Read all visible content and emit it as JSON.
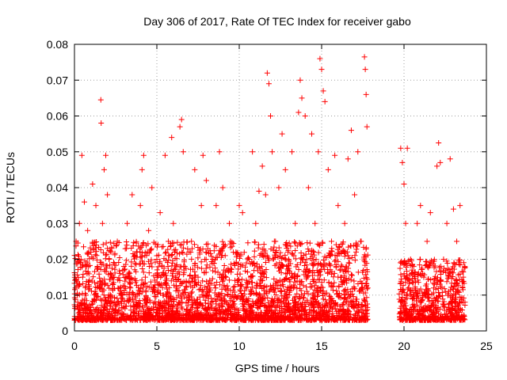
{
  "chart_data": {
    "type": "scatter",
    "title": "Day 306 of 2017, Rate Of TEC Index for receiver gabo",
    "xlabel": "GPS time / hours",
    "ylabel": "ROTI / TECUs",
    "xlim": [
      0,
      25
    ],
    "ylim": [
      0,
      0.08
    ],
    "x_ticks": [
      0,
      5,
      10,
      15,
      20,
      25
    ],
    "y_ticks": [
      0,
      0.01,
      0.02,
      0.03,
      0.04,
      0.05,
      0.06,
      0.07,
      0.08
    ],
    "x_tick_labels": [
      "0",
      "5",
      "10",
      "15",
      "20",
      "25"
    ],
    "y_tick_labels": [
      "0",
      "0.01",
      "0.02",
      "0.03",
      "0.04",
      "0.05",
      "0.06",
      "0.07",
      "0.08"
    ],
    "grid": true,
    "marker": "+",
    "color": "#ff0000",
    "series": [
      {
        "points": [
          [
            0.05,
            0.012
          ],
          [
            0.1,
            0.025
          ],
          [
            0.2,
            0.008
          ],
          [
            0.3,
            0.03
          ],
          [
            0.35,
            0.005
          ],
          [
            0.4,
            0.02
          ],
          [
            0.45,
            0.049
          ],
          [
            0.5,
            0.015
          ],
          [
            0.6,
            0.036
          ],
          [
            0.7,
            0.01
          ],
          [
            0.8,
            0.028
          ],
          [
            0.9,
            0.006
          ],
          [
            1.0,
            0.022
          ],
          [
            1.1,
            0.041
          ],
          [
            1.2,
            0.009
          ],
          [
            1.3,
            0.035
          ],
          [
            1.4,
            0.018
          ],
          [
            1.5,
            0.012
          ],
          [
            1.6,
            0.0645
          ],
          [
            1.62,
            0.058
          ],
          [
            1.7,
            0.03
          ],
          [
            1.8,
            0.045
          ],
          [
            1.9,
            0.049
          ],
          [
            2.0,
            0.038
          ],
          [
            2.1,
            0.02
          ],
          [
            2.2,
            0.007
          ],
          [
            2.4,
            0.015
          ],
          [
            2.6,
            0.025
          ],
          [
            2.8,
            0.01
          ],
          [
            3.0,
            0.018
          ],
          [
            3.2,
            0.03
          ],
          [
            3.4,
            0.012
          ],
          [
            3.5,
            0.038
          ],
          [
            3.6,
            0.008
          ],
          [
            3.8,
            0.022
          ],
          [
            4.0,
            0.035
          ],
          [
            4.1,
            0.045
          ],
          [
            4.2,
            0.049
          ],
          [
            4.3,
            0.015
          ],
          [
            4.5,
            0.028
          ],
          [
            4.7,
            0.04
          ],
          [
            4.8,
            0.006
          ],
          [
            5.0,
            0.02
          ],
          [
            5.2,
            0.033
          ],
          [
            5.4,
            0.01
          ],
          [
            5.5,
            0.049
          ],
          [
            5.7,
            0.025
          ],
          [
            5.9,
            0.054
          ],
          [
            6.0,
            0.03
          ],
          [
            6.2,
            0.012
          ],
          [
            6.4,
            0.057
          ],
          [
            6.5,
            0.059
          ],
          [
            6.6,
            0.05
          ],
          [
            6.7,
            0.018
          ],
          [
            6.9,
            0.008
          ],
          [
            7.1,
            0.025
          ],
          [
            7.3,
            0.045
          ],
          [
            7.5,
            0.015
          ],
          [
            7.7,
            0.035
          ],
          [
            7.8,
            0.049
          ],
          [
            8.0,
            0.042
          ],
          [
            8.2,
            0.012
          ],
          [
            8.4,
            0.02
          ],
          [
            8.6,
            0.035
          ],
          [
            8.8,
            0.05
          ],
          [
            9.0,
            0.04
          ],
          [
            9.2,
            0.015
          ],
          [
            9.4,
            0.03
          ],
          [
            9.6,
            0.008
          ],
          [
            9.8,
            0.022
          ],
          [
            10.0,
            0.035
          ],
          [
            10.2,
            0.033
          ],
          [
            10.4,
            0.012
          ],
          [
            10.6,
            0.02
          ],
          [
            10.8,
            0.05
          ],
          [
            11.0,
            0.03
          ],
          [
            11.2,
            0.039
          ],
          [
            11.4,
            0.046
          ],
          [
            11.6,
            0.038
          ],
          [
            11.7,
            0.072
          ],
          [
            11.8,
            0.069
          ],
          [
            11.9,
            0.06
          ],
          [
            12.0,
            0.05
          ],
          [
            12.2,
            0.025
          ],
          [
            12.4,
            0.04
          ],
          [
            12.6,
            0.055
          ],
          [
            12.8,
            0.045
          ],
          [
            13.0,
            0.02
          ],
          [
            13.2,
            0.05
          ],
          [
            13.4,
            0.03
          ],
          [
            13.6,
            0.061
          ],
          [
            13.7,
            0.07
          ],
          [
            13.8,
            0.065
          ],
          [
            14.0,
            0.06
          ],
          [
            14.2,
            0.04
          ],
          [
            14.4,
            0.055
          ],
          [
            14.6,
            0.03
          ],
          [
            14.8,
            0.05
          ],
          [
            14.9,
            0.076
          ],
          [
            15.0,
            0.073
          ],
          [
            15.1,
            0.067
          ],
          [
            15.2,
            0.064
          ],
          [
            15.4,
            0.045
          ],
          [
            15.6,
            0.025
          ],
          [
            15.8,
            0.049
          ],
          [
            16.0,
            0.035
          ],
          [
            16.2,
            0.015
          ],
          [
            16.4,
            0.03
          ],
          [
            16.6,
            0.048
          ],
          [
            16.8,
            0.056
          ],
          [
            17.0,
            0.038
          ],
          [
            17.2,
            0.05
          ],
          [
            17.4,
            0.025
          ],
          [
            17.6,
            0.0765
          ],
          [
            17.65,
            0.073
          ],
          [
            17.7,
            0.066
          ],
          [
            17.75,
            0.057
          ],
          [
            17.8,
            0.012
          ],
          [
            19.8,
            0.051
          ],
          [
            19.9,
            0.047
          ],
          [
            20.0,
            0.041
          ],
          [
            20.1,
            0.03
          ],
          [
            20.2,
            0.051
          ],
          [
            20.4,
            0.02
          ],
          [
            20.6,
            0.01
          ],
          [
            20.8,
            0.03
          ],
          [
            21.0,
            0.035
          ],
          [
            21.2,
            0.015
          ],
          [
            21.4,
            0.025
          ],
          [
            21.6,
            0.033
          ],
          [
            21.8,
            0.012
          ],
          [
            22.0,
            0.046
          ],
          [
            22.1,
            0.0525
          ],
          [
            22.2,
            0.047
          ],
          [
            22.4,
            0.02
          ],
          [
            22.6,
            0.03
          ],
          [
            22.8,
            0.048
          ],
          [
            23.0,
            0.034
          ],
          [
            23.2,
            0.025
          ],
          [
            23.4,
            0.035
          ],
          [
            23.6,
            0.015
          ],
          [
            23.7,
            0.008
          ]
        ]
      }
    ],
    "dense_bands": [
      {
        "x_start": 0.0,
        "x_end": 17.8,
        "y_min": 0.003,
        "y_max": 0.025
      },
      {
        "x_start": 19.7,
        "x_end": 23.7,
        "y_min": 0.003,
        "y_max": 0.02
      }
    ]
  }
}
